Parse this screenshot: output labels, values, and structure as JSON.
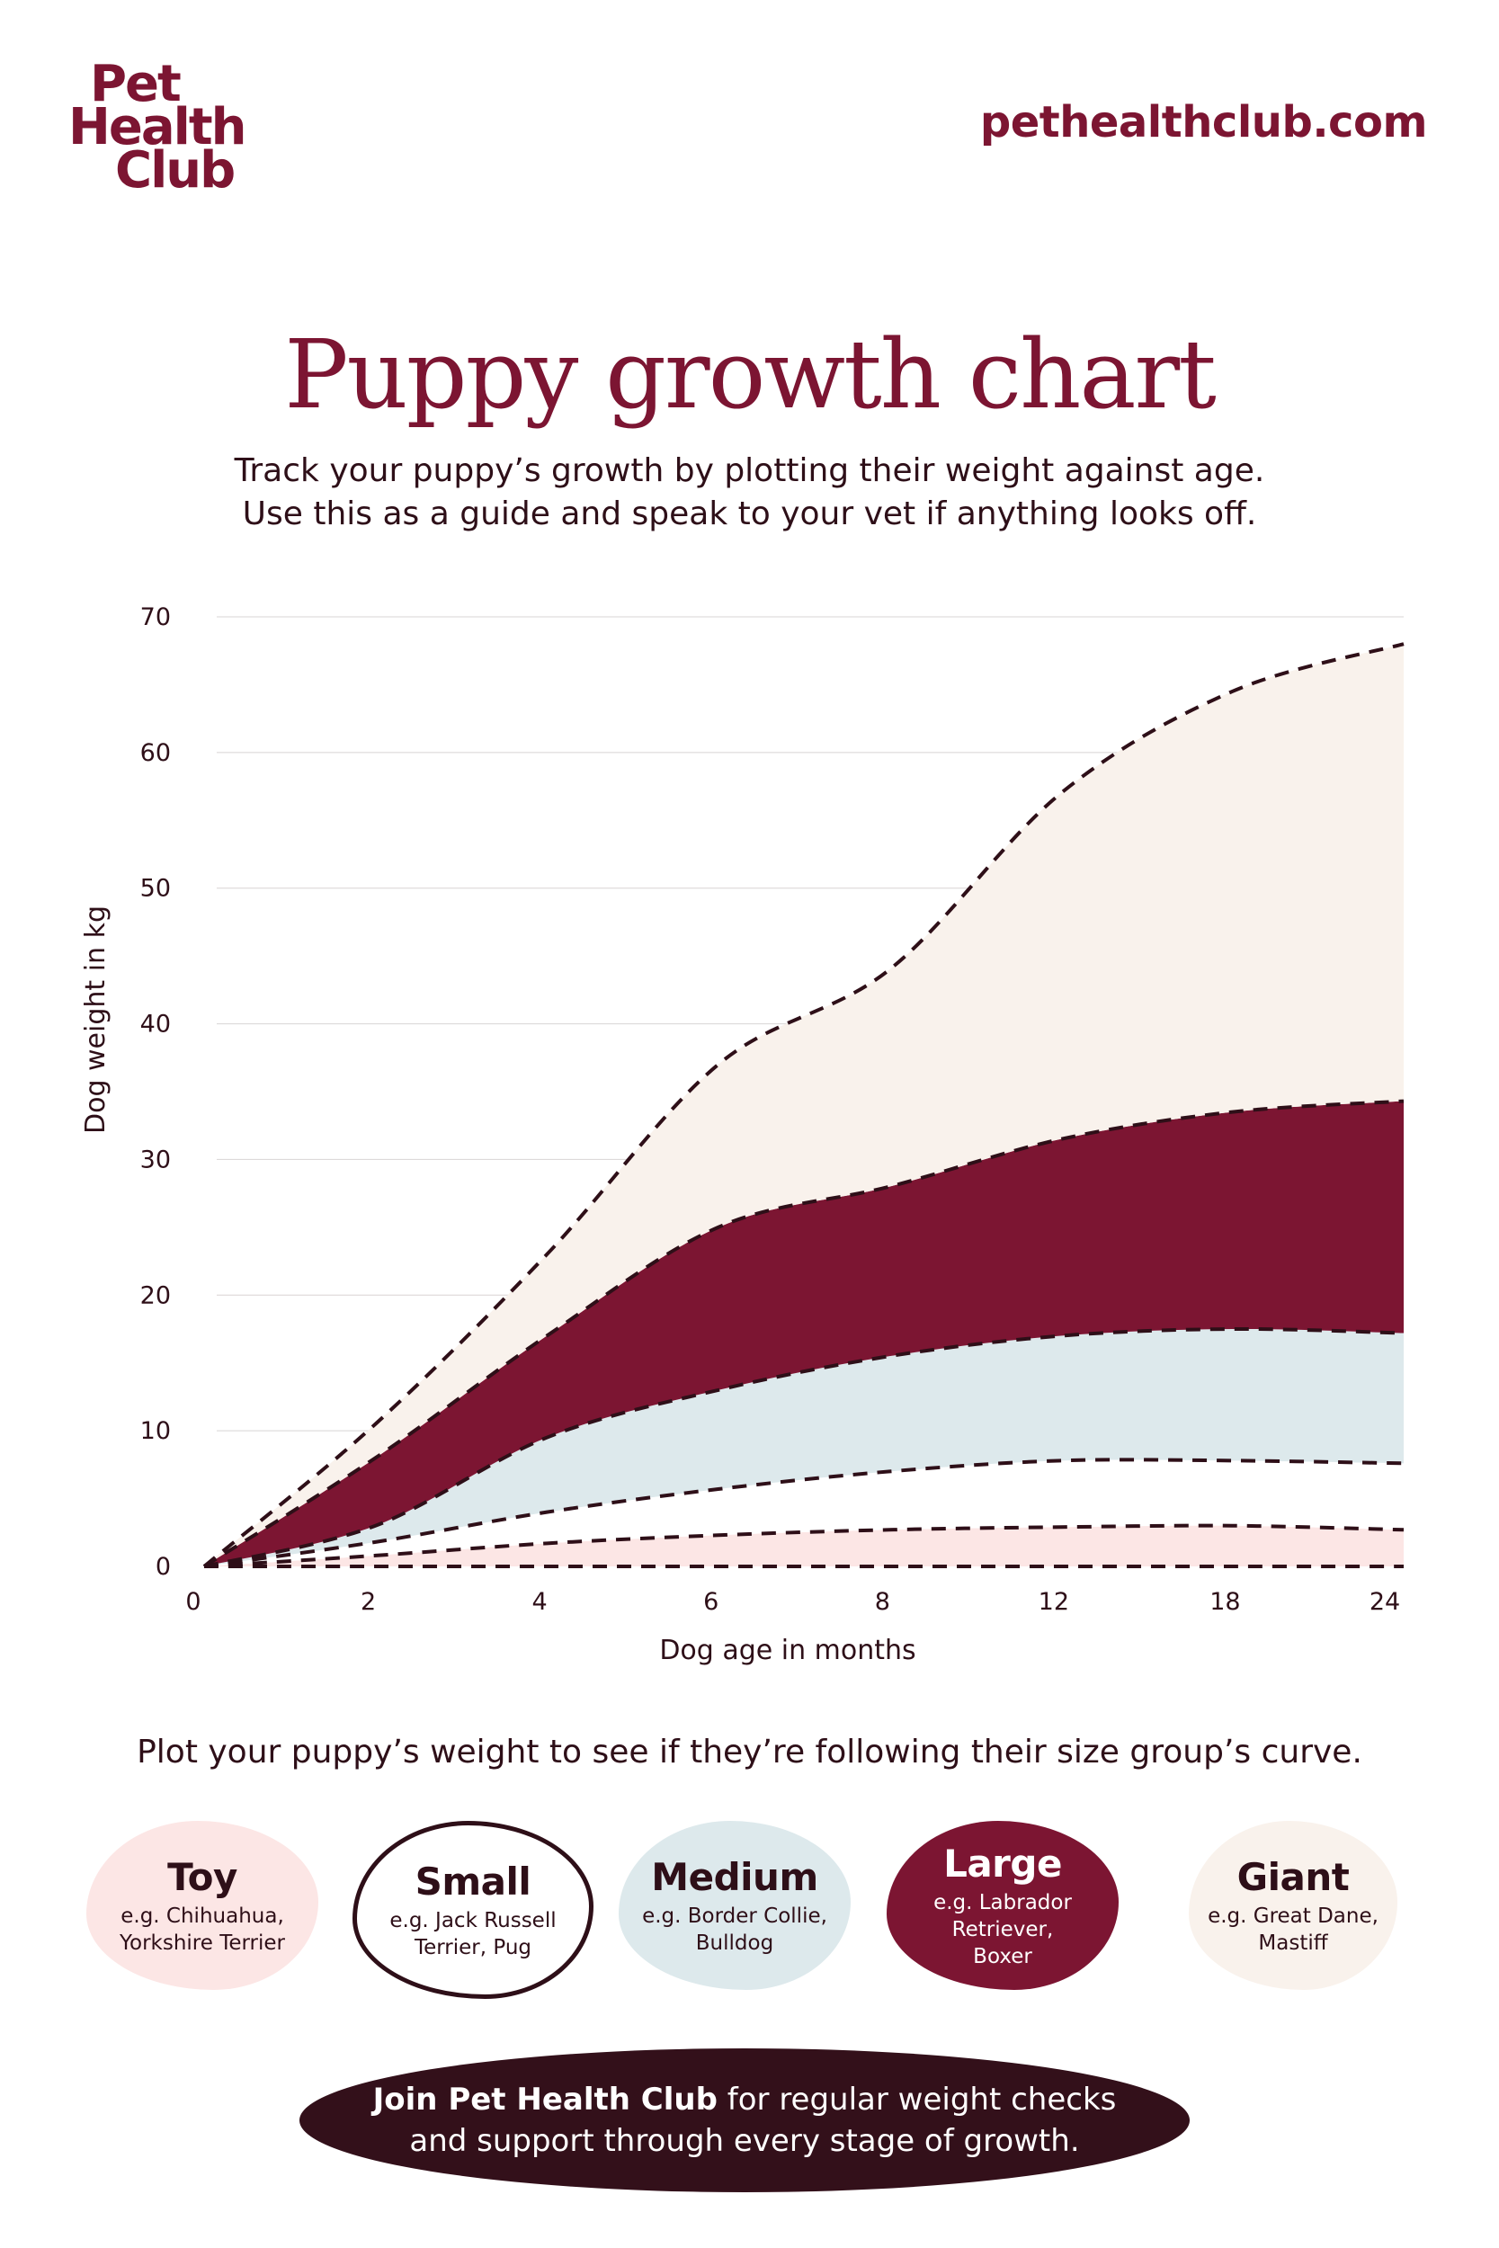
{
  "header": {
    "logo_lines": [
      "Pet",
      "Health",
      "Club"
    ],
    "site_url": "pethealthclub.com"
  },
  "title": "Puppy growth chart",
  "subtitle_lines": [
    "Track your puppy’s growth by plotting their weight against age.",
    "Use this as a guide and speak to your vet if anything looks off."
  ],
  "instruction": "Plot your puppy’s weight to see if they’re following their size group’s curve.",
  "legend": [
    {
      "name": "Toy",
      "examples": [
        "e.g. Chihuahua,",
        "Yorkshire Terrier"
      ],
      "fill": "#fce6e5",
      "text_color": "#2e0f18",
      "outline": false
    },
    {
      "name": "Small",
      "examples": [
        "e.g. Jack Russell",
        "Terrier, Pug"
      ],
      "fill": "#ffffff",
      "text_color": "#2e0f18",
      "outline": true
    },
    {
      "name": "Medium",
      "examples": [
        "e.g. Border Collie,",
        "Bulldog"
      ],
      "fill": "#dde9ec",
      "text_color": "#2e0f18",
      "outline": false
    },
    {
      "name": "Large",
      "examples": [
        "e.g. Labrador Retriever,",
        "Boxer"
      ],
      "fill": "#7c1532",
      "text_color": "#ffffff",
      "outline": false
    },
    {
      "name": "Giant",
      "examples": [
        "e.g. Great Dane,",
        "Mastiff"
      ],
      "fill": "#f9f2ec",
      "text_color": "#2e0f18",
      "outline": false
    }
  ],
  "cta": {
    "bold": "Join Pet Health Club",
    "rest_line1": " for regular weight checks",
    "line2": "and support through every stage of growth."
  },
  "colors": {
    "brand": "#7c1532",
    "dark": "#2e0f18",
    "cta_bg": "#33101a"
  },
  "chart_data": {
    "type": "area",
    "title": "Puppy growth chart",
    "xlabel": "Dog age in months",
    "ylabel": "Dog weight in kg",
    "x": [
      0,
      2,
      4,
      6,
      8,
      12,
      18,
      24
    ],
    "x_tick_labels": [
      "0",
      "2",
      "4",
      "6",
      "8",
      "12",
      "18",
      "24"
    ],
    "y_ticks": [
      0,
      10,
      20,
      30,
      40,
      50,
      60,
      70
    ],
    "ylim": [
      0,
      70
    ],
    "grid": true,
    "line_style": "dashed",
    "boundaries": [
      {
        "name": "Toy lower",
        "values": [
          0,
          0,
          0,
          0,
          0,
          0,
          0,
          0
        ]
      },
      {
        "name": "Toy upper",
        "values": [
          0,
          0.8,
          1.7,
          2.3,
          2.7,
          2.9,
          3.0,
          2.7
        ]
      },
      {
        "name": "Small upper",
        "values": [
          0,
          1.8,
          4.0,
          5.7,
          7.0,
          7.8,
          7.8,
          7.6
        ]
      },
      {
        "name": "Medium upper",
        "values": [
          0,
          3.0,
          9.5,
          13.0,
          15.5,
          17.0,
          17.5,
          17.2
        ]
      },
      {
        "name": "Large upper",
        "values": [
          0,
          8.0,
          17.0,
          25.0,
          28.0,
          31.5,
          33.5,
          34.3
        ]
      },
      {
        "name": "Giant upper",
        "values": [
          0,
          10.5,
          23.0,
          37.0,
          44.0,
          57.0,
          64.5,
          68.0
        ]
      }
    ],
    "series": [
      {
        "name": "Toy",
        "lower": "Toy lower",
        "upper": "Toy upper",
        "fill": "#fce6e5"
      },
      {
        "name": "Small",
        "lower": "Toy upper",
        "upper": "Small upper",
        "fill": "#ffffff"
      },
      {
        "name": "Medium",
        "lower": "Small upper",
        "upper": "Medium upper",
        "fill": "#dde9ec"
      },
      {
        "name": "Large",
        "lower": "Medium upper",
        "upper": "Large upper",
        "fill": "#7c1532"
      },
      {
        "name": "Giant",
        "lower": "Large upper",
        "upper": "Giant upper",
        "fill": "#f9f2ec"
      }
    ]
  }
}
